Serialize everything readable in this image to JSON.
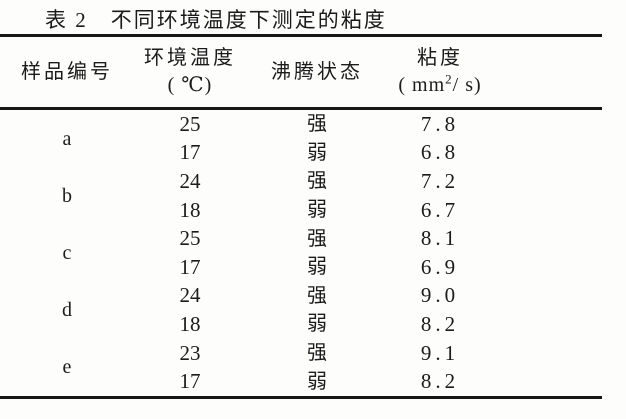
{
  "page": {
    "background": "#fdfdfc",
    "text_color": "#1b1b1b",
    "rule_color": "#161616"
  },
  "title": "表 2　不同环境温度下测定的粘度",
  "table": {
    "columns": {
      "sample": "样品编号",
      "temp_line1": "环境温度",
      "temp_line2": "( ℃)",
      "boiling": "沸腾状态",
      "visc_line1": "粘度",
      "visc_unit_pre": "( mm",
      "visc_unit_sup": "2",
      "visc_unit_post": "/ s)"
    },
    "groups": [
      {
        "sample": "a",
        "rows": [
          {
            "temp": "25",
            "boil": "强",
            "visc": "7.8"
          },
          {
            "temp": "17",
            "boil": "弱",
            "visc": "6.8"
          }
        ]
      },
      {
        "sample": "b",
        "rows": [
          {
            "temp": "24",
            "boil": "强",
            "visc": "7.2"
          },
          {
            "temp": "18",
            "boil": "弱",
            "visc": "6.7"
          }
        ]
      },
      {
        "sample": "c",
        "rows": [
          {
            "temp": "25",
            "boil": "强",
            "visc": "8.1"
          },
          {
            "temp": "17",
            "boil": "弱",
            "visc": "6.9"
          }
        ]
      },
      {
        "sample": "d",
        "rows": [
          {
            "temp": "24",
            "boil": "强",
            "visc": "9.0"
          },
          {
            "temp": "18",
            "boil": "弱",
            "visc": "8.2"
          }
        ]
      },
      {
        "sample": "e",
        "rows": [
          {
            "temp": "23",
            "boil": "强",
            "visc": "9.1"
          },
          {
            "temp": "17",
            "boil": "弱",
            "visc": "8.2"
          }
        ]
      }
    ]
  }
}
